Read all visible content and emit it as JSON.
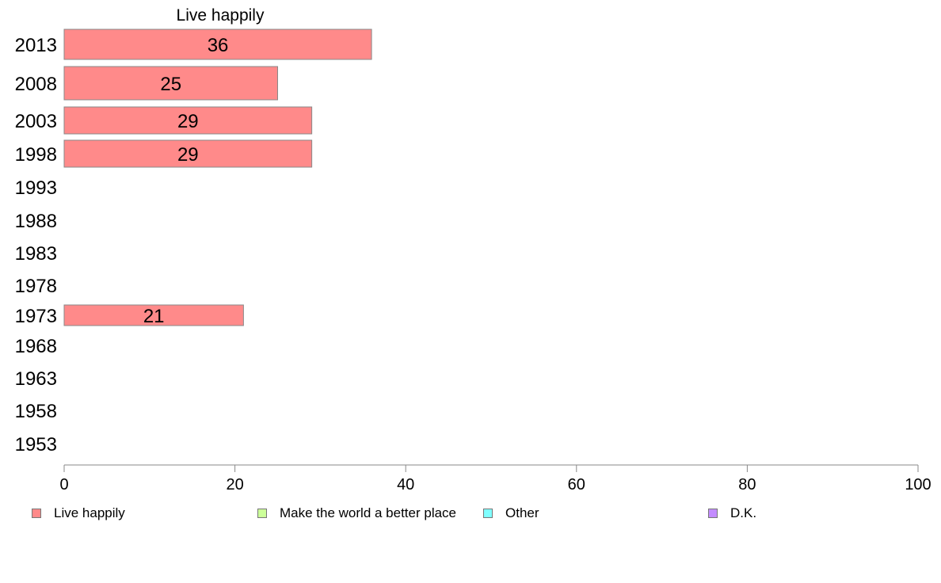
{
  "chart_data": {
    "type": "bar",
    "orientation": "horizontal",
    "title": "Live happily",
    "categories": [
      "2013",
      "2008",
      "2003",
      "1998",
      "1993",
      "1988",
      "1983",
      "1978",
      "1973",
      "1968",
      "1963",
      "1958",
      "1953"
    ],
    "series": [
      {
        "name": "Live happily",
        "values": [
          36,
          25,
          29,
          29,
          null,
          null,
          null,
          null,
          21,
          null,
          null,
          null,
          null
        ],
        "color": "#ff8a8a"
      }
    ],
    "xticks": [
      "0",
      "20",
      "40",
      "60",
      "80",
      "100"
    ],
    "xlim": [
      0,
      100
    ],
    "grid": false,
    "legend_placement": "bottom"
  },
  "legend": [
    {
      "label": "Live happily",
      "color": "#ff8a8a"
    },
    {
      "label": "Make the world a better place",
      "color": "#ccff99"
    },
    {
      "label": "Other",
      "color": "#80ffff"
    },
    {
      "label": "D.K.",
      "color": "#c38cff"
    }
  ]
}
